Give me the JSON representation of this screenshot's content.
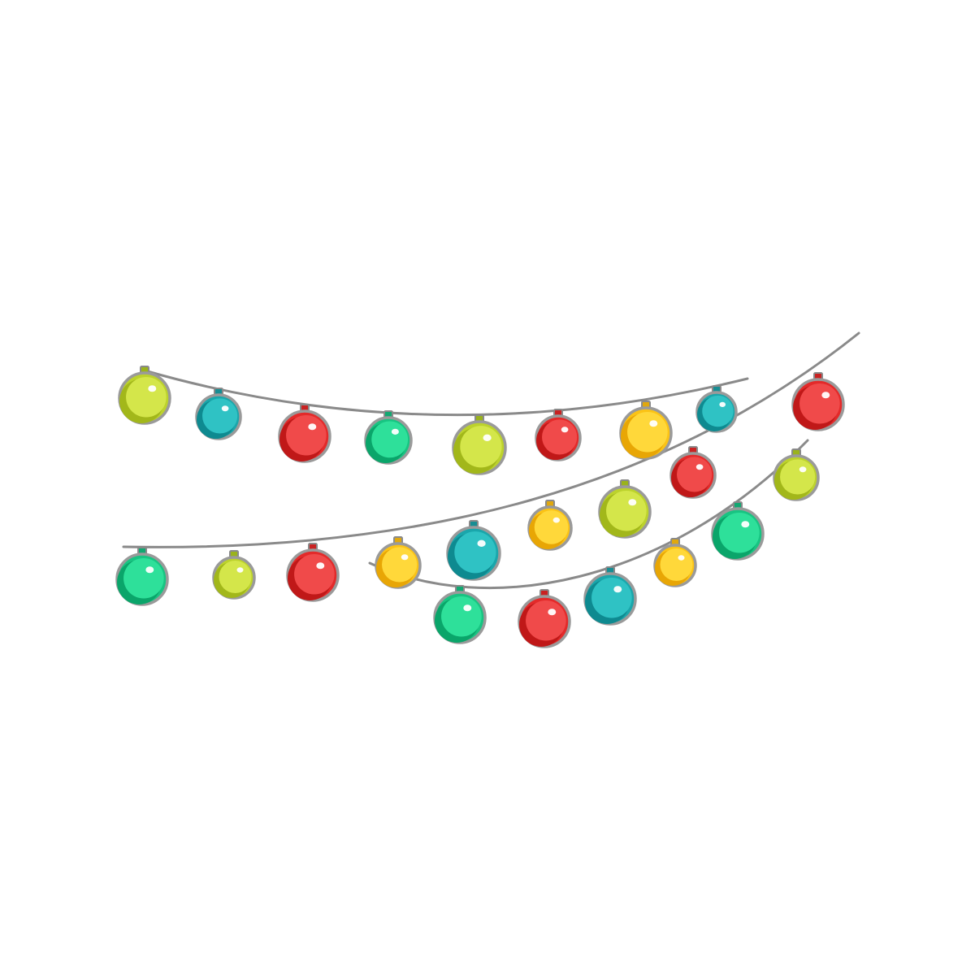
{
  "palette": {
    "lime": {
      "name": "lime",
      "light": "#d4e64a",
      "base": "#bcd22c",
      "dark": "#a2b71a",
      "cap": "#9ab31c"
    },
    "teal": {
      "name": "teal",
      "light": "#2fc2c4",
      "base": "#1aa6ab",
      "dark": "#0e8a90",
      "cap": "#178d93"
    },
    "red": {
      "name": "red",
      "light": "#f04a4a",
      "base": "#e32a2a",
      "dark": "#c01818",
      "cap": "#c92222"
    },
    "green": {
      "name": "green",
      "light": "#2ee09a",
      "base": "#18c482",
      "dark": "#0aa56a",
      "cap": "#12a872"
    },
    "yellow": {
      "name": "yellow",
      "light": "#ffd83a",
      "base": "#fbc315",
      "dark": "#e8a605",
      "cap": "#e0a80e"
    }
  },
  "strings": [
    {
      "name": "upper-garland",
      "bulbs": [
        "lime",
        "teal",
        "red",
        "green",
        "lime",
        "red",
        "yellow",
        "teal"
      ]
    },
    {
      "name": "middle-garland",
      "bulbs": [
        "green",
        "lime",
        "red",
        "yellow",
        "teal",
        "yellow",
        "lime",
        "red",
        "red"
      ]
    },
    {
      "name": "lower-garland",
      "bulbs": [
        "green",
        "red",
        "teal",
        "yellow",
        "green",
        "lime"
      ]
    }
  ]
}
